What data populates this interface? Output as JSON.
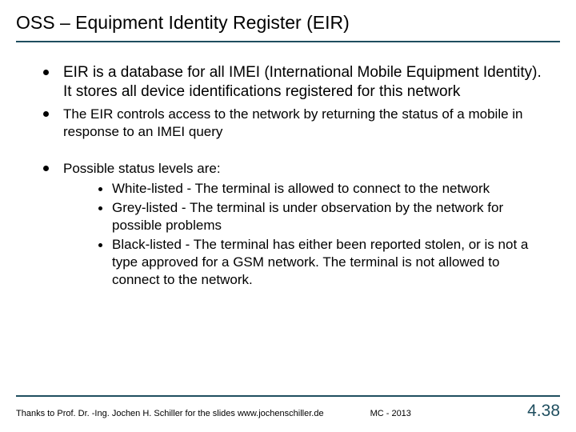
{
  "colors": {
    "rule": "#1f4e5f",
    "page_number": "#1f4e5f"
  },
  "title": "OSS – Equipment Identity Register (EIR)",
  "bullets": {
    "b1": "EIR is a database for all IMEI (International Mobile Equipment Identity). It stores all device identifications registered for this network",
    "b2": "The EIR controls access to the network by returning the status of a mobile in response to an IMEI query",
    "b3": "Possible status levels are:",
    "sub": {
      "s1": "White-listed - The terminal is allowed to connect to the network",
      "s2": "Grey-listed  - The terminal is under observation by the network for possible problems",
      "s3": "Black-listed - The terminal has either been reported stolen, or is not a type approved for a GSM network. The terminal is not allowed to connect to the network."
    }
  },
  "footer": {
    "credits": "Thanks to Prof. Dr. -Ing. Jochen H. Schiller for the slides  www.jochenschiller.de",
    "course": "MC - 2013",
    "page": "4.38"
  }
}
